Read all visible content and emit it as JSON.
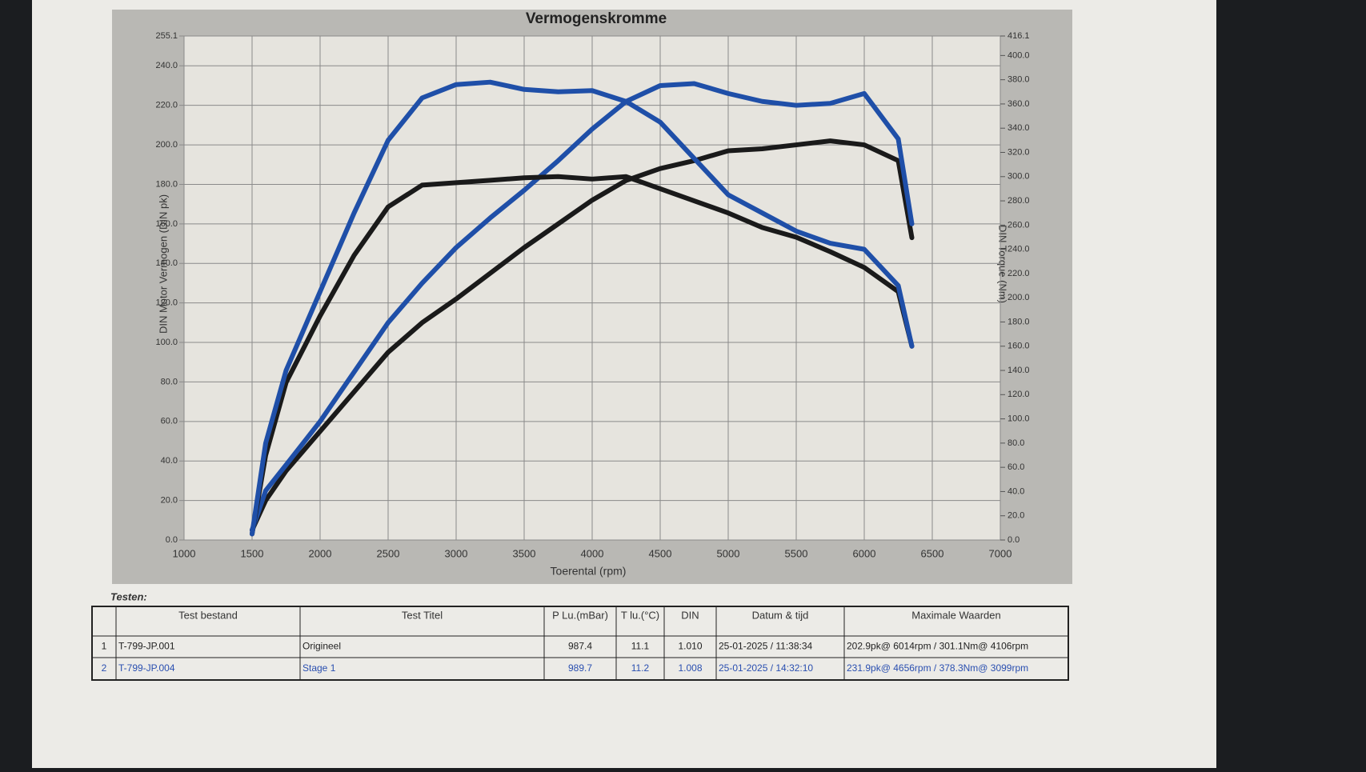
{
  "chart_data": {
    "type": "line",
    "title": "Vermogenskromme",
    "xlabel": "Toerental (rpm)",
    "ylabel": "DIN Motor Vermogen (DIN pk)",
    "y2label": "DIN Torque (Nm)",
    "x": [
      1500,
      1600,
      1750,
      2000,
      2250,
      2500,
      2750,
      3000,
      3250,
      3500,
      3750,
      4000,
      4250,
      4500,
      4750,
      5000,
      5250,
      5500,
      5750,
      6000,
      6250,
      6350
    ],
    "xlim": [
      1000,
      7000
    ],
    "xticks": [
      1000,
      1500,
      2000,
      2500,
      3000,
      3500,
      4000,
      4500,
      5000,
      5500,
      6000,
      6500,
      7000
    ],
    "ylim": [
      0,
      255.1
    ],
    "yticks": [
      {
        "value": 0,
        "label": "0.0"
      },
      {
        "value": 20,
        "label": "20.0"
      },
      {
        "value": 40,
        "label": "40.0"
      },
      {
        "value": 60,
        "label": "60.0"
      },
      {
        "value": 80,
        "label": "80.0"
      },
      {
        "value": 100,
        "label": "100.0"
      },
      {
        "value": 120,
        "label": "120.0"
      },
      {
        "value": 140,
        "label": "140.0"
      },
      {
        "value": 160,
        "label": "160.0"
      },
      {
        "value": 180,
        "label": "180.0"
      },
      {
        "value": 200,
        "label": "200.0"
      },
      {
        "value": 220,
        "label": "220.0"
      },
      {
        "value": 240,
        "label": "240.0"
      },
      255.1
    ],
    "y2lim": [
      0,
      416.1
    ],
    "y2ticks": [
      {
        "value": 0,
        "label": "0.0"
      },
      {
        "value": 20,
        "label": "20.0"
      },
      {
        "value": 40,
        "label": "40.0"
      },
      {
        "value": 60,
        "label": "60.0"
      },
      {
        "value": 80,
        "label": "80.0"
      },
      {
        "value": 100,
        "label": "100.0"
      },
      {
        "value": 120,
        "label": "120.0"
      },
      {
        "value": 140,
        "label": "140.0"
      },
      {
        "value": 160,
        "label": "160.0"
      },
      {
        "value": 180,
        "label": "180.0"
      },
      {
        "value": 200,
        "label": "200.0"
      },
      {
        "value": 220,
        "label": "220.0"
      },
      {
        "value": 240,
        "label": "240.0"
      },
      {
        "value": 260,
        "label": "260.0"
      },
      {
        "value": 280,
        "label": "280.0"
      },
      {
        "value": 300,
        "label": "300.0"
      },
      {
        "value": 320,
        "label": "320.0"
      },
      {
        "value": 340,
        "label": "340.0"
      },
      {
        "value": 360,
        "label": "360.0"
      },
      {
        "value": 380,
        "label": "380.0"
      },
      {
        "value": 400,
        "label": "400.0"
      },
      416.1
    ],
    "grid": true,
    "series": [
      {
        "color": "#1a1a1a",
        "values": [
          5,
          20,
          35,
          55,
          75,
          95,
          110,
          122,
          135,
          148,
          160,
          172,
          182,
          188,
          192,
          197,
          198,
          200,
          202,
          200,
          192,
          153
        ]
      },
      {
        "color": "#1f4fa8",
        "values": [
          5,
          25,
          38,
          60,
          85,
          110,
          130,
          148,
          163,
          177,
          192,
          208,
          222,
          230,
          231,
          226,
          222,
          220,
          221,
          226,
          203,
          160
        ]
      },
      {
        "color": "#1a1a1a",
        "axis": "y2",
        "values": [
          5,
          70,
          130,
          185,
          235,
          275,
          293,
          295,
          297,
          299,
          300,
          298,
          300,
          290,
          280,
          270,
          258,
          250,
          238,
          225,
          205,
          160
        ]
      },
      {
        "color": "#1f4fa8",
        "axis": "y2",
        "values": [
          5,
          80,
          140,
          205,
          270,
          330,
          365,
          376,
          378,
          372,
          370,
          371,
          362,
          345,
          315,
          285,
          270,
          255,
          245,
          240,
          210,
          160
        ]
      }
    ]
  },
  "table": {
    "caption": "Testen:",
    "header": [
      "Test bestand",
      "Test Titel",
      "P Lu.(mBar)",
      "T lu.(°C)",
      "DIN",
      "Datum & tijd",
      "Maximale Waarden"
    ],
    "rows": [
      [
        "1",
        "T-799-JP.001",
        "Origineel",
        "987.4",
        "11.1",
        "1.010",
        "25-01-2025 / 11:38:34",
        "202.9pk@ 6014rpm / 301.1Nm@ 4106rpm"
      ],
      [
        "2",
        "T-799-JP.004",
        "Stage 1",
        "989.7",
        "11.2",
        "1.008",
        "25-01-2025 / 14:32:10",
        "231.9pk@ 4656rpm / 378.3Nm@ 3099rpm"
      ]
    ]
  }
}
